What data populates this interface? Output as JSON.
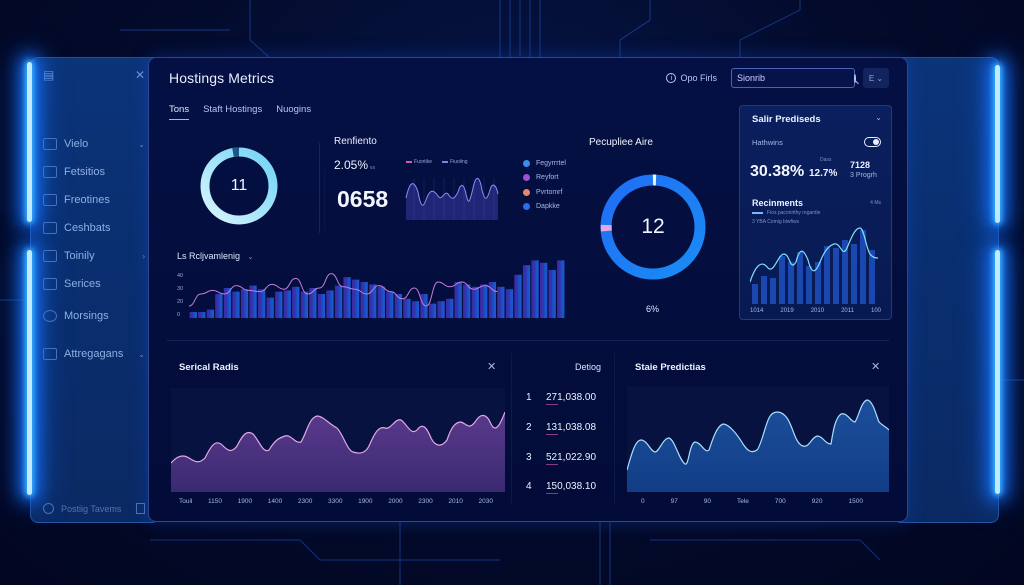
{
  "window": {
    "title": "Hostings Metrics",
    "tabs": [
      {
        "label": "Tons",
        "active": true
      },
      {
        "label": "Staft Hostings",
        "active": false
      },
      {
        "label": "Nuogins",
        "active": false
      }
    ],
    "help_label": "Opo Firls",
    "search": {
      "value": "Sionrib",
      "placeholder": "Search"
    },
    "language_button": "E"
  },
  "sidebar": {
    "items": [
      {
        "label": "Vielo",
        "icon": "monitor-icon",
        "has_chevron": true
      },
      {
        "label": "Fetsitios",
        "icon": "building-icon",
        "has_chevron": false
      },
      {
        "label": "Freotines",
        "icon": "chart-icon",
        "has_chevron": false
      },
      {
        "label": "Ceshbats",
        "icon": "stack-icon",
        "has_chevron": false
      },
      {
        "label": "Toinily",
        "icon": "clipboard-icon",
        "has_chevron": true
      },
      {
        "label": "Serices",
        "icon": "list-icon",
        "has_chevron": false
      },
      {
        "label": "Morsings",
        "icon": "clock-icon",
        "has_chevron": false
      },
      {
        "label": "Attregagans",
        "icon": "gear-icon",
        "has_chevron": true
      }
    ],
    "footer_label": "Postiig Tavems"
  },
  "colors": {
    "accent_cyan": "#7fe0ff",
    "accent_blue": "#1a6dff",
    "accent_purple": "#7b4fd6",
    "accent_pink": "#e58ad6",
    "panel_bg": "#041044"
  },
  "donut_left": {
    "value": "11",
    "percent": 94
  },
  "rendimiento": {
    "title": "Renfiento",
    "percent": "2.05%",
    "percent_sub": "vs",
    "big_value": "0658",
    "chart_legend": [
      "Fuortike",
      "Fiuoling"
    ]
  },
  "legend": [
    {
      "label": "Fegyrrrtel",
      "color": "#3a8cf0"
    },
    {
      "label": "Reyfort",
      "color": "#a04fd0"
    },
    {
      "label": "Pvrtomrf",
      "color": "#e08a6a"
    },
    {
      "label": "Dapkke",
      "color": "#2a6ee8"
    }
  ],
  "bars_panel": {
    "title": "Ls Rcljvamlenig",
    "y_ticks": [
      "40",
      "30",
      "20",
      "0"
    ]
  },
  "donut_right": {
    "title": "Pecupliee Aire",
    "value": "12",
    "footer": "6%"
  },
  "predictions_card": {
    "title": "Salir Prediseds",
    "subtitle": "Hathwins",
    "main_pct": "30.38%",
    "mid_label": "Dass",
    "mid_pct": "12.7%",
    "right_value": "7128",
    "right_label": "3 Progrh",
    "section_title": "Recinments",
    "section_right": "4 Ms",
    "legend_1": "Fios paconirthy regantle",
    "legend_2": "3 YBA Comig biwfiws",
    "x_labels": [
      "1014",
      "2019",
      "2010",
      "2011",
      "100"
    ]
  },
  "serical_radis": {
    "title": "Serical Radis",
    "x_labels": [
      "Touil",
      "1150",
      "1900",
      "1400",
      "2300",
      "3300",
      "1900",
      "2000",
      "2300",
      "2010",
      "2030"
    ]
  },
  "detalles": {
    "header": "Detiog",
    "rows": [
      {
        "rank": "1",
        "value": "271,038.00"
      },
      {
        "rank": "2",
        "value": "131,038.08"
      },
      {
        "rank": "3",
        "value": "521,022.90"
      },
      {
        "rank": "4",
        "value": "150,038.10"
      }
    ]
  },
  "stale_predictions": {
    "title": "Staie Predictias",
    "x_labels": [
      "0",
      "97",
      "90",
      "Tele",
      "700",
      "920",
      "1500"
    ]
  },
  "chart_data": [
    {
      "type": "line",
      "title": "Renfiento",
      "series": [
        {
          "name": "Fuortike",
          "values": [
            22,
            30,
            12,
            25,
            20,
            28,
            18,
            32,
            24,
            36,
            14,
            34,
            26,
            30,
            20
          ]
        }
      ]
    },
    {
      "type": "bar",
      "title": "Ls Rcljvamlenig",
      "ylim": [
        0,
        50
      ],
      "values": [
        5,
        5,
        7,
        20,
        25,
        22,
        24,
        27,
        24,
        17,
        22,
        23,
        26,
        22,
        25,
        20,
        23,
        27,
        34,
        32,
        30,
        28,
        26,
        22,
        20,
        16,
        14,
        20,
        12,
        14,
        16,
        30,
        28,
        26,
        28,
        30,
        26,
        24,
        36,
        44,
        48,
        46,
        40,
        48
      ],
      "overlay_line": [
        10,
        20,
        23,
        20,
        27,
        23,
        22,
        28,
        24,
        33,
        20,
        25,
        37,
        26,
        24,
        20,
        27,
        22,
        16,
        25,
        10,
        30,
        26,
        30,
        24,
        27,
        22
      ]
    },
    {
      "type": "pie",
      "title": "Pecupliee Aire",
      "center_value": "12",
      "slices": [
        {
          "label": "main",
          "value": 94
        },
        {
          "label": "pink",
          "value": 3
        },
        {
          "label": "cyan",
          "value": 3
        }
      ]
    },
    {
      "type": "bar",
      "title": "Recinments",
      "categories": [
        "1014",
        "2019",
        "2010",
        "2011",
        "100"
      ],
      "values": [
        10,
        14,
        13,
        25,
        22,
        27,
        20,
        22,
        32,
        30,
        35,
        33,
        42,
        30
      ],
      "overlay_line": [
        8,
        22,
        18,
        28,
        20,
        30,
        14,
        22,
        32,
        26,
        40,
        48,
        30
      ]
    },
    {
      "type": "area",
      "title": "Serical Radis",
      "x": [
        "Touil",
        "1150",
        "1900",
        "1400",
        "2300",
        "3300",
        "1900",
        "2000",
        "2300",
        "2010",
        "2030"
      ],
      "values": [
        25,
        32,
        28,
        48,
        38,
        55,
        36,
        50,
        52,
        44,
        72,
        62,
        40,
        62,
        64,
        55,
        58,
        45,
        70,
        65,
        78,
        62,
        82
      ]
    },
    {
      "type": "area",
      "title": "Staie Predictias",
      "x": [
        "0",
        "97",
        "90",
        "Tele",
        "700",
        "920",
        "1500"
      ],
      "values": [
        20,
        52,
        42,
        54,
        28,
        50,
        44,
        68,
        56,
        42,
        78,
        72,
        52,
        56,
        50,
        76,
        70,
        88,
        66,
        60
      ]
    }
  ]
}
